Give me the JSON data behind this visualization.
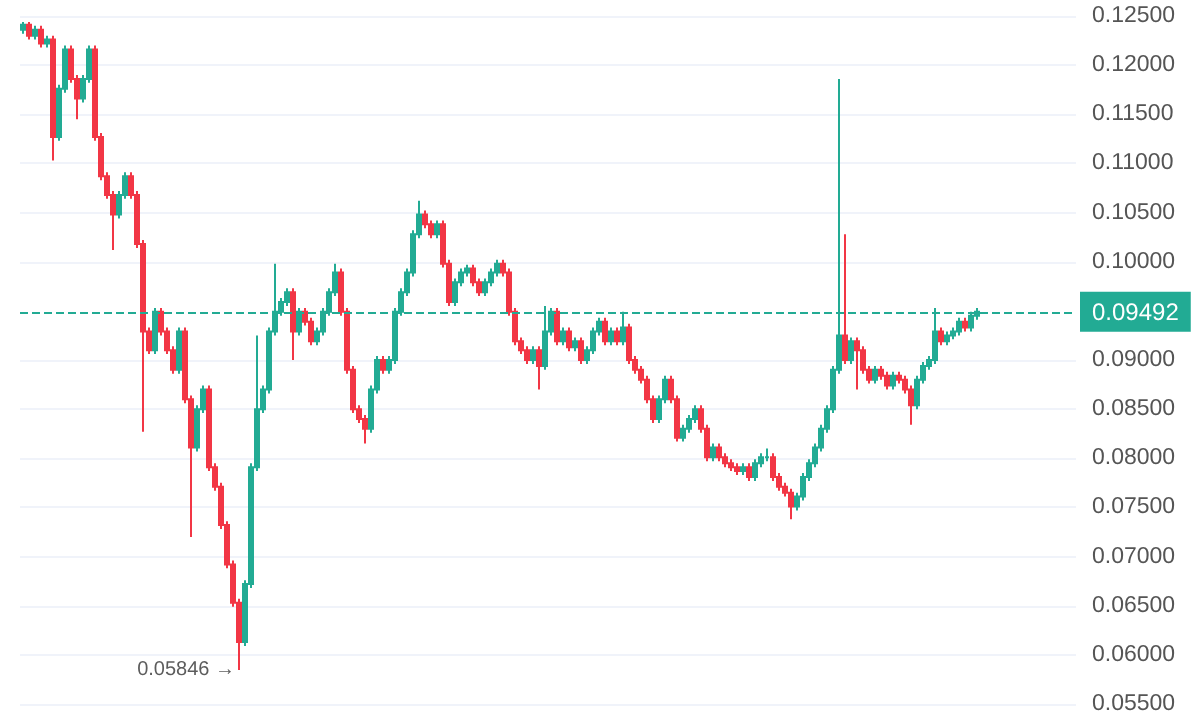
{
  "chart_data": {
    "type": "candlestick",
    "categories": [
      null,
      null,
      null,
      null,
      null,
      null,
      null,
      null,
      null,
      null,
      null,
      null,
      null,
      null,
      null,
      null,
      null,
      null,
      null,
      null,
      null,
      null,
      null,
      null,
      null,
      null,
      null,
      null,
      null,
      null,
      null,
      null,
      null,
      null,
      null,
      null,
      null,
      null,
      null,
      null,
      null,
      null,
      null,
      null,
      null,
      null,
      null,
      null,
      null,
      null,
      null,
      null,
      null,
      null,
      null,
      null,
      null,
      null,
      null,
      null,
      null,
      null,
      null,
      null,
      null,
      null,
      null,
      null,
      null,
      null,
      null,
      null,
      null,
      null,
      null,
      null,
      null,
      null,
      null,
      null,
      null,
      null,
      null,
      null,
      null,
      null,
      null,
      null,
      null,
      null,
      null,
      null,
      null,
      null,
      null,
      null,
      null,
      null,
      null,
      null,
      null,
      null,
      null,
      null,
      null,
      null,
      null,
      null,
      null,
      null,
      null,
      null,
      null,
      null,
      null,
      null,
      null,
      null,
      null,
      null,
      null,
      null,
      null,
      null,
      null,
      null,
      null,
      null,
      null,
      null,
      null,
      null,
      null,
      null,
      null,
      null,
      null,
      null,
      null,
      null,
      null,
      null,
      null,
      null,
      null,
      null,
      null,
      null,
      null,
      null,
      null,
      null,
      null,
      null,
      null,
      null,
      null,
      null,
      null,
      null
    ],
    "ohlc": [
      [
        0.1236,
        0.1244,
        0.1232,
        0.1241
      ],
      [
        0.1241,
        0.1244,
        0.1226,
        0.123
      ],
      [
        0.123,
        0.124,
        0.1226,
        0.1236
      ],
      [
        0.1236,
        0.124,
        0.1218,
        0.1222
      ],
      [
        0.1222,
        0.123,
        0.1218,
        0.1226
      ],
      [
        0.1226,
        0.123,
        0.1103,
        0.1127
      ],
      [
        0.1127,
        0.118,
        0.1123,
        0.1176
      ],
      [
        0.1176,
        0.122,
        0.1172,
        0.1216
      ],
      [
        0.1216,
        0.122,
        0.1182,
        0.1186
      ],
      [
        0.1186,
        0.119,
        0.1145,
        0.1166
      ],
      [
        0.1166,
        0.119,
        0.1162,
        0.1186
      ],
      [
        0.1186,
        0.122,
        0.1182,
        0.1216
      ],
      [
        0.1216,
        0.122,
        0.1123,
        0.1127
      ],
      [
        0.1127,
        0.1131,
        0.1083,
        0.1087
      ],
      [
        0.1087,
        0.1091,
        0.1064,
        0.1068
      ],
      [
        0.1068,
        0.1072,
        0.1012,
        0.1048
      ],
      [
        0.1048,
        0.1072,
        0.1044,
        0.1068
      ],
      [
        0.1068,
        0.1091,
        0.1064,
        0.1087
      ],
      [
        0.1087,
        0.1091,
        0.1064,
        0.1068
      ],
      [
        0.1068,
        0.1072,
        0.1014,
        0.1018
      ],
      [
        0.1018,
        0.1022,
        0.0827,
        0.0929
      ],
      [
        0.0929,
        0.0933,
        0.0906,
        0.091
      ],
      [
        0.091,
        0.0953,
        0.0906,
        0.0949
      ],
      [
        0.0949,
        0.0953,
        0.0925,
        0.0929
      ],
      [
        0.0929,
        0.0933,
        0.0906,
        0.091
      ],
      [
        0.091,
        0.0914,
        0.0886,
        0.089
      ],
      [
        0.089,
        0.0933,
        0.0886,
        0.0929
      ],
      [
        0.0929,
        0.0933,
        0.0856,
        0.086
      ],
      [
        0.086,
        0.0864,
        0.072,
        0.0811
      ],
      [
        0.0811,
        0.0854,
        0.0807,
        0.085
      ],
      [
        0.085,
        0.0874,
        0.0846,
        0.087
      ],
      [
        0.087,
        0.0874,
        0.0787,
        0.0791
      ],
      [
        0.0791,
        0.0795,
        0.0767,
        0.0771
      ],
      [
        0.0771,
        0.0775,
        0.0728,
        0.0732
      ],
      [
        0.0732,
        0.0736,
        0.0688,
        0.0692
      ],
      [
        0.0692,
        0.0696,
        0.0649,
        0.0653
      ],
      [
        0.0653,
        0.0657,
        0.05846,
        0.0613
      ],
      [
        0.0613,
        0.0676,
        0.0609,
        0.0672
      ],
      [
        0.0672,
        0.0795,
        0.0668,
        0.0791
      ],
      [
        0.0791,
        0.0925,
        0.0787,
        0.085
      ],
      [
        0.085,
        0.0874,
        0.0846,
        0.087
      ],
      [
        0.087,
        0.0933,
        0.0866,
        0.0929
      ],
      [
        0.0929,
        0.0998,
        0.0925,
        0.0949
      ],
      [
        0.0949,
        0.0963,
        0.0945,
        0.0959
      ],
      [
        0.0959,
        0.0973,
        0.0955,
        0.0969
      ],
      [
        0.0969,
        0.0973,
        0.09,
        0.0929
      ],
      [
        0.0929,
        0.0953,
        0.0925,
        0.0949
      ],
      [
        0.0949,
        0.0953,
        0.0935,
        0.0939
      ],
      [
        0.0939,
        0.0943,
        0.0915,
        0.0919
      ],
      [
        0.0919,
        0.0933,
        0.0915,
        0.0929
      ],
      [
        0.0929,
        0.0953,
        0.0925,
        0.0949
      ],
      [
        0.0949,
        0.0973,
        0.0945,
        0.0969
      ],
      [
        0.0969,
        0.0998,
        0.0965,
        0.0989
      ],
      [
        0.0989,
        0.0993,
        0.0945,
        0.0949
      ],
      [
        0.0949,
        0.0953,
        0.0886,
        0.089
      ],
      [
        0.089,
        0.0894,
        0.0846,
        0.085
      ],
      [
        0.085,
        0.0854,
        0.0836,
        0.084
      ],
      [
        0.084,
        0.0844,
        0.0815,
        0.083
      ],
      [
        0.083,
        0.0874,
        0.0826,
        0.087
      ],
      [
        0.087,
        0.0904,
        0.0866,
        0.09
      ],
      [
        0.09,
        0.0904,
        0.0886,
        0.089
      ],
      [
        0.089,
        0.0904,
        0.0886,
        0.09
      ],
      [
        0.09,
        0.0953,
        0.0896,
        0.0949
      ],
      [
        0.0949,
        0.0973,
        0.0945,
        0.0969
      ],
      [
        0.0969,
        0.0993,
        0.0965,
        0.0989
      ],
      [
        0.0989,
        0.1032,
        0.0985,
        0.1028
      ],
      [
        0.1028,
        0.1062,
        0.1024,
        0.1048
      ],
      [
        0.1048,
        0.1052,
        0.1034,
        0.1038
      ],
      [
        0.1038,
        0.1042,
        0.1024,
        0.1028
      ],
      [
        0.1028,
        0.1042,
        0.1024,
        0.1038
      ],
      [
        0.1038,
        0.1042,
        0.0994,
        0.0998
      ],
      [
        0.0998,
        0.1002,
        0.0955,
        0.0959
      ],
      [
        0.0959,
        0.0983,
        0.0955,
        0.0979
      ],
      [
        0.0979,
        0.0993,
        0.0975,
        0.0989
      ],
      [
        0.0989,
        0.0997,
        0.0985,
        0.0993
      ],
      [
        0.0993,
        0.0997,
        0.0975,
        0.0979
      ],
      [
        0.0979,
        0.0983,
        0.0965,
        0.0969
      ],
      [
        0.0969,
        0.0983,
        0.0965,
        0.0979
      ],
      [
        0.0979,
        0.0993,
        0.0975,
        0.0989
      ],
      [
        0.0989,
        0.1002,
        0.0985,
        0.0998
      ],
      [
        0.0998,
        0.1002,
        0.0985,
        0.0989
      ],
      [
        0.0989,
        0.0993,
        0.0945,
        0.0949
      ],
      [
        0.0949,
        0.0953,
        0.0915,
        0.0919
      ],
      [
        0.0919,
        0.0923,
        0.0906,
        0.091
      ],
      [
        0.091,
        0.0914,
        0.0896,
        0.09
      ],
      [
        0.09,
        0.0914,
        0.0896,
        0.091
      ],
      [
        0.091,
        0.0914,
        0.087,
        0.0894
      ],
      [
        0.0894,
        0.0955,
        0.089,
        0.0929
      ],
      [
        0.0929,
        0.0953,
        0.0925,
        0.0949
      ],
      [
        0.0949,
        0.0953,
        0.0915,
        0.0919
      ],
      [
        0.0919,
        0.0933,
        0.0915,
        0.0929
      ],
      [
        0.0929,
        0.0933,
        0.0909,
        0.0913
      ],
      [
        0.0913,
        0.0923,
        0.0909,
        0.0919
      ],
      [
        0.0919,
        0.0923,
        0.0896,
        0.09
      ],
      [
        0.09,
        0.0914,
        0.0896,
        0.091
      ],
      [
        0.091,
        0.0933,
        0.0906,
        0.0929
      ],
      [
        0.0929,
        0.0943,
        0.0925,
        0.0939
      ],
      [
        0.0939,
        0.0943,
        0.0915,
        0.0919
      ],
      [
        0.0919,
        0.0933,
        0.0915,
        0.0929
      ],
      [
        0.0929,
        0.0933,
        0.0915,
        0.0919
      ],
      [
        0.0919,
        0.0949,
        0.0915,
        0.0933
      ],
      [
        0.0933,
        0.0937,
        0.0896,
        0.09
      ],
      [
        0.09,
        0.0904,
        0.0886,
        0.089
      ],
      [
        0.089,
        0.0894,
        0.0876,
        0.088
      ],
      [
        0.088,
        0.0884,
        0.0856,
        0.086
      ],
      [
        0.086,
        0.0864,
        0.0836,
        0.084
      ],
      [
        0.084,
        0.0864,
        0.0836,
        0.086
      ],
      [
        0.086,
        0.0884,
        0.0856,
        0.088
      ],
      [
        0.088,
        0.0884,
        0.0856,
        0.086
      ],
      [
        0.086,
        0.0864,
        0.0817,
        0.0821
      ],
      [
        0.0821,
        0.0834,
        0.0817,
        0.083
      ],
      [
        0.083,
        0.0844,
        0.0826,
        0.084
      ],
      [
        0.084,
        0.0854,
        0.0836,
        0.085
      ],
      [
        0.085,
        0.0854,
        0.0826,
        0.083
      ],
      [
        0.083,
        0.0834,
        0.0797,
        0.0801
      ],
      [
        0.0801,
        0.0815,
        0.0797,
        0.0811
      ],
      [
        0.0811,
        0.0815,
        0.0797,
        0.0801
      ],
      [
        0.0801,
        0.0805,
        0.0791,
        0.0795
      ],
      [
        0.0795,
        0.0799,
        0.0787,
        0.0791
      ],
      [
        0.0791,
        0.0795,
        0.0783,
        0.0787
      ],
      [
        0.0787,
        0.0795,
        0.0783,
        0.0791
      ],
      [
        0.0791,
        0.0795,
        0.0777,
        0.0781
      ],
      [
        0.0781,
        0.0799,
        0.0777,
        0.0795
      ],
      [
        0.0795,
        0.0805,
        0.0791,
        0.0801
      ],
      [
        0.0801,
        0.081,
        0.0797,
        0.0801
      ],
      [
        0.0801,
        0.0805,
        0.0777,
        0.0781
      ],
      [
        0.0781,
        0.0785,
        0.0767,
        0.0771
      ],
      [
        0.0771,
        0.0775,
        0.0761,
        0.0765
      ],
      [
        0.0765,
        0.0769,
        0.0738,
        0.0751
      ],
      [
        0.0751,
        0.0765,
        0.0747,
        0.0761
      ],
      [
        0.0761,
        0.0785,
        0.0757,
        0.0781
      ],
      [
        0.0781,
        0.0799,
        0.0777,
        0.0795
      ],
      [
        0.0795,
        0.0815,
        0.0791,
        0.0811
      ],
      [
        0.0811,
        0.0834,
        0.0807,
        0.083
      ],
      [
        0.083,
        0.0854,
        0.0826,
        0.085
      ],
      [
        0.085,
        0.0894,
        0.0846,
        0.089
      ],
      [
        0.089,
        0.1186,
        0.0886,
        0.0925
      ],
      [
        0.0925,
        0.1028,
        0.0896,
        0.09
      ],
      [
        0.09,
        0.0923,
        0.0896,
        0.0919
      ],
      [
        0.0919,
        0.0923,
        0.087,
        0.091
      ],
      [
        0.091,
        0.0914,
        0.0886,
        0.089
      ],
      [
        0.089,
        0.0894,
        0.0876,
        0.088
      ],
      [
        0.088,
        0.0894,
        0.0876,
        0.089
      ],
      [
        0.089,
        0.0894,
        0.088,
        0.0884
      ],
      [
        0.0884,
        0.0888,
        0.087,
        0.0874
      ],
      [
        0.0874,
        0.0888,
        0.087,
        0.0884
      ],
      [
        0.0884,
        0.0888,
        0.0876,
        0.088
      ],
      [
        0.088,
        0.0884,
        0.0866,
        0.087
      ],
      [
        0.087,
        0.0874,
        0.0834,
        0.0854
      ],
      [
        0.0854,
        0.0884,
        0.085,
        0.088
      ],
      [
        0.088,
        0.0898,
        0.0876,
        0.0894
      ],
      [
        0.0894,
        0.0904,
        0.089,
        0.09
      ],
      [
        0.09,
        0.0953,
        0.0896,
        0.0929
      ],
      [
        0.0929,
        0.0933,
        0.0915,
        0.0919
      ],
      [
        0.0919,
        0.0929,
        0.0915,
        0.0925
      ],
      [
        0.0925,
        0.0933,
        0.0921,
        0.0929
      ],
      [
        0.0929,
        0.0943,
        0.0925,
        0.0939
      ],
      [
        0.0939,
        0.0943,
        0.0929,
        0.0933
      ],
      [
        0.0933,
        0.0949,
        0.0929,
        0.0945
      ],
      [
        0.0945,
        0.0953,
        0.0941,
        0.0949
      ]
    ],
    "ylim": [
      0.055,
      0.125
    ],
    "yticks": [
      {
        "value": 0.055,
        "label": "0.05500"
      },
      {
        "value": 0.06,
        "label": "0.06000"
      },
      {
        "value": 0.065,
        "label": "0.06500"
      },
      {
        "value": 0.07,
        "label": "0.07000"
      },
      {
        "value": 0.075,
        "label": "0.07500"
      },
      {
        "value": 0.08,
        "label": "0.08000"
      },
      {
        "value": 0.085,
        "label": "0.08500"
      },
      {
        "value": 0.09,
        "label": "0.09000"
      },
      {
        "value": 0.1,
        "label": "0.10000"
      },
      {
        "value": 0.105,
        "label": "0.10500"
      },
      {
        "value": 0.11,
        "label": "0.11000"
      },
      {
        "value": 0.115,
        "label": "0.11500"
      },
      {
        "value": 0.12,
        "label": "0.12000"
      },
      {
        "value": 0.125,
        "label": "0.12500"
      }
    ],
    "ref_lines": [
      {
        "axis": "y",
        "value": 0.09492,
        "label": "0.09492",
        "color": "#22ab94",
        "line_style": "dashed"
      }
    ],
    "annotations": [
      "0.05846 →"
    ],
    "grid": "y",
    "tick_labels": "y"
  }
}
